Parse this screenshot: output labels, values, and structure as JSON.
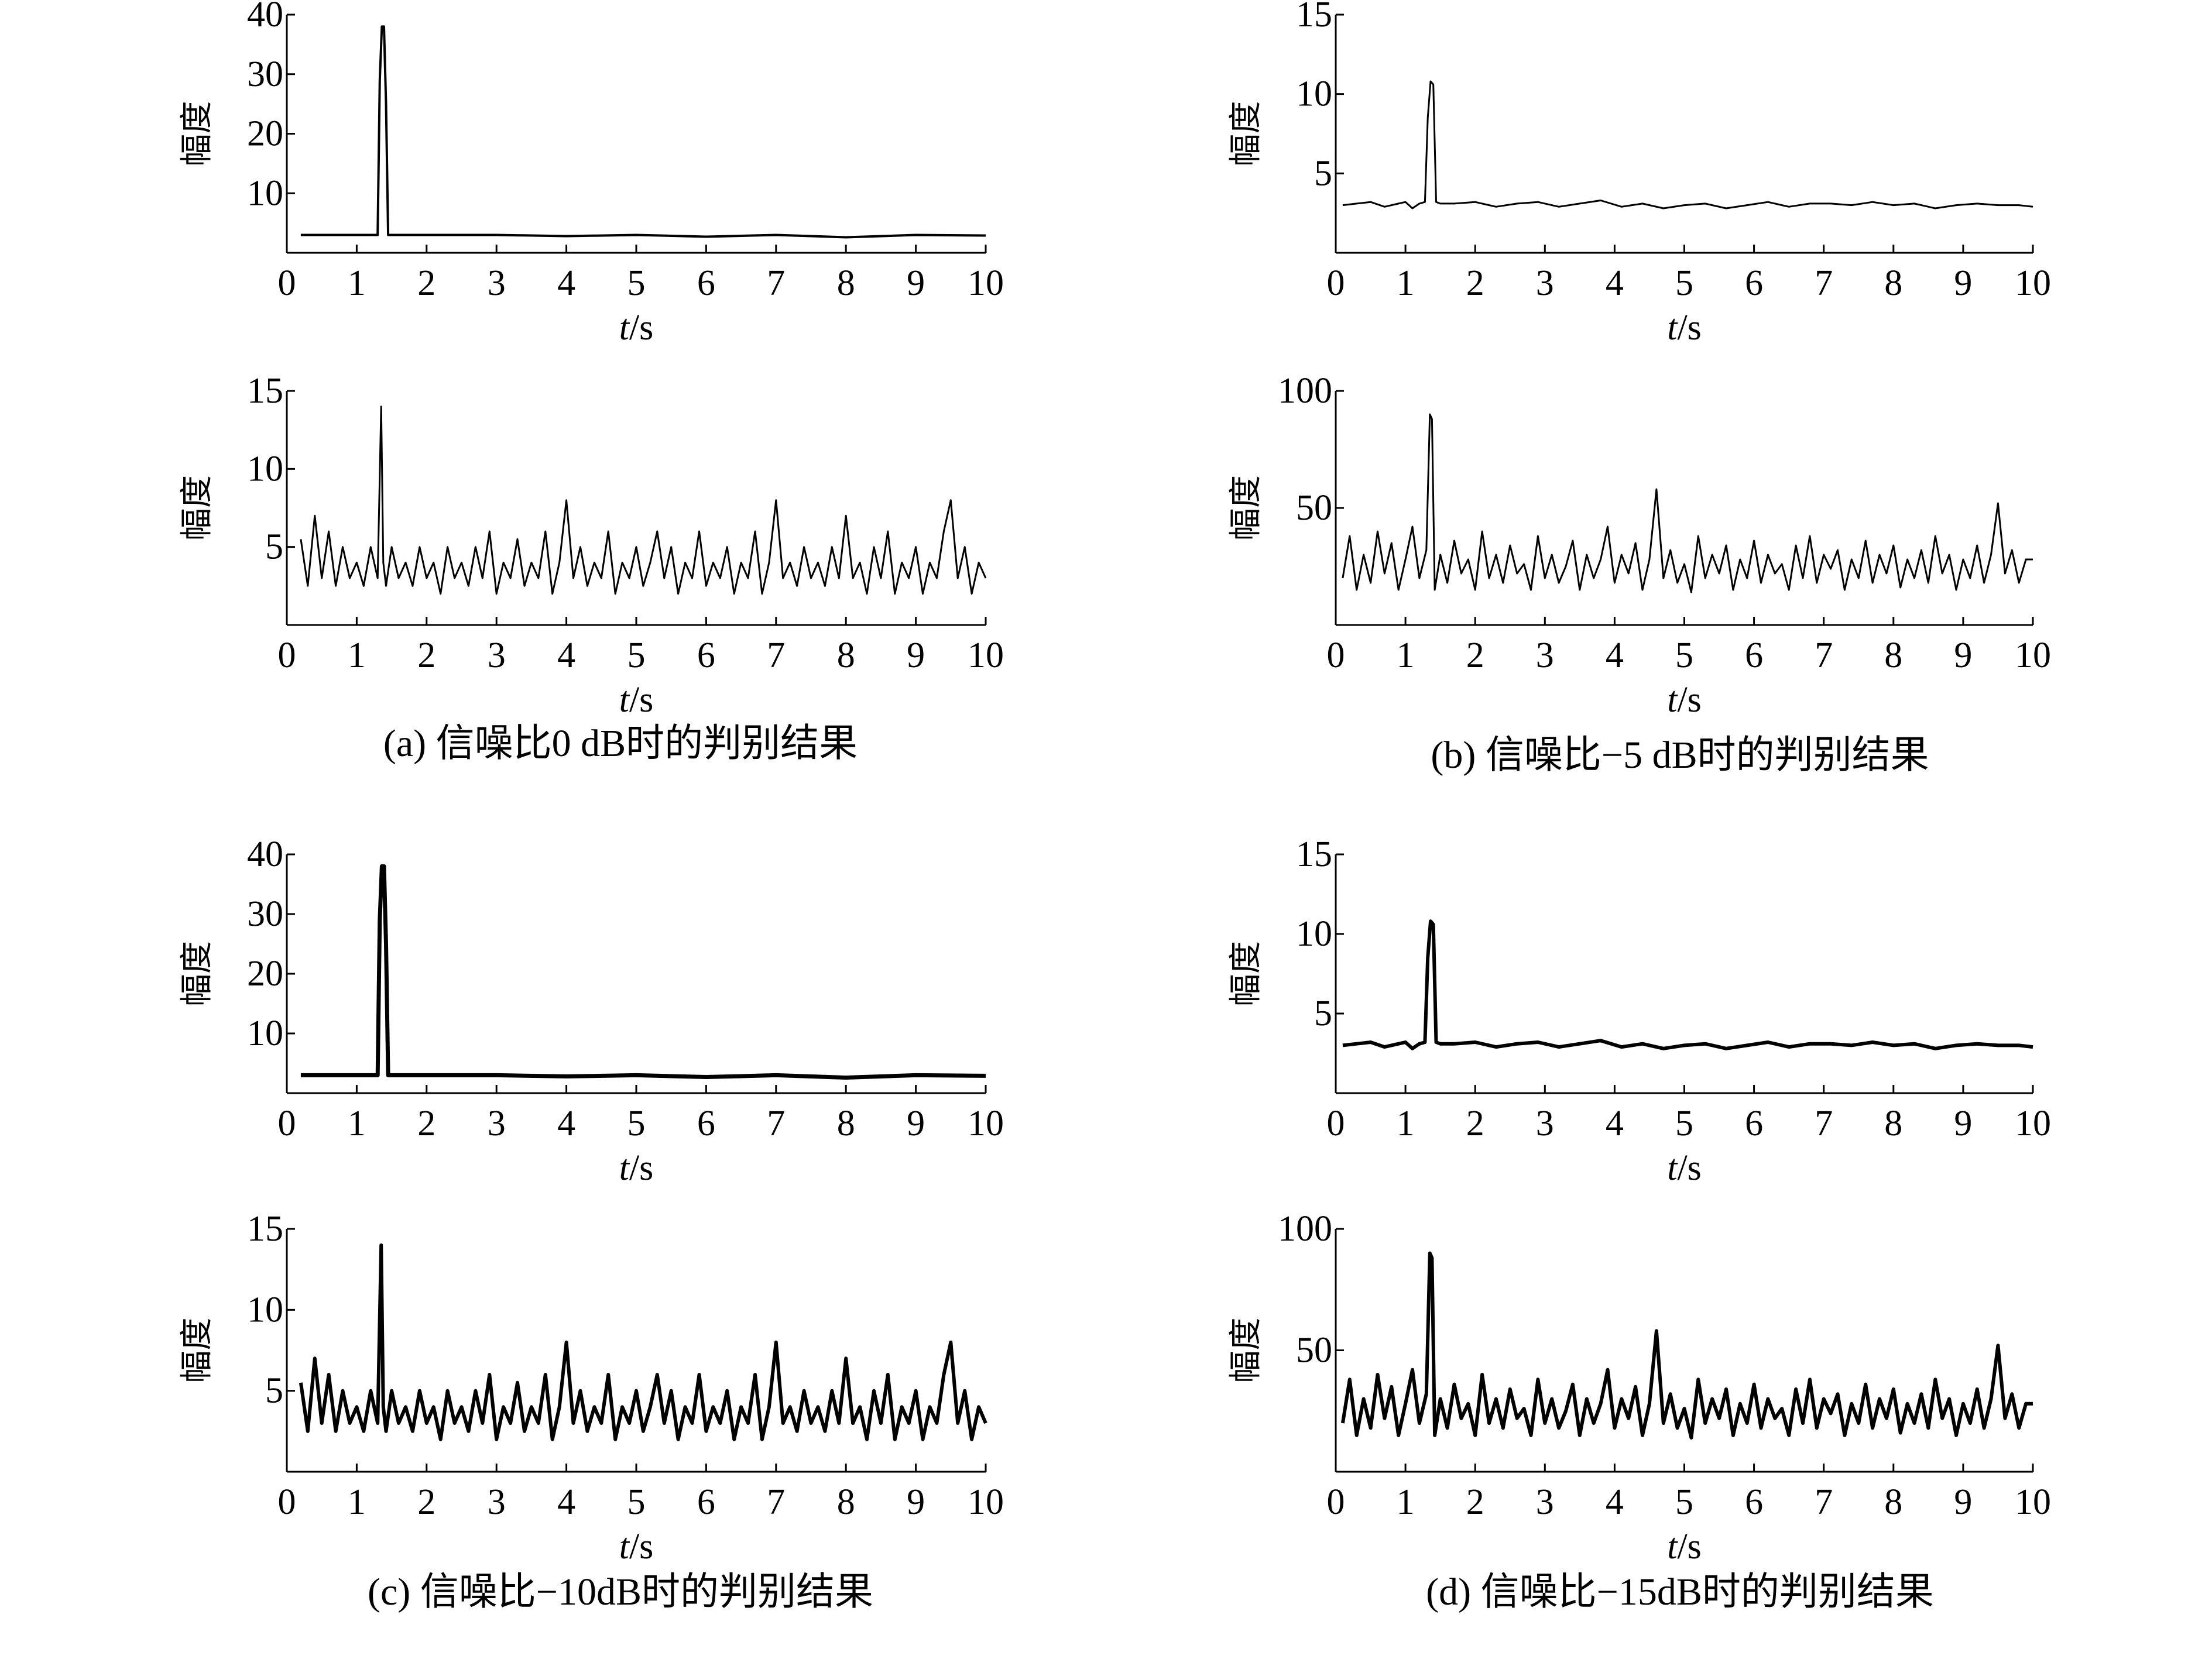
{
  "figure": {
    "captions": [
      "(a) 信噪比0 dB时的判别结果",
      "(b) 信噪比−5 dB时的判别结果",
      "(c) 信噪比−10dB时的判别结果",
      "(d) 信噪比−15dB时的判别结果"
    ]
  },
  "chart_data": [
    {
      "id": "a-top",
      "type": "line",
      "xlabel_italic": "t",
      "xlabel_unit": "/s",
      "ylabel": "幅度",
      "xlim": [
        0,
        10
      ],
      "ylim": [
        0,
        40
      ],
      "xticks": [
        0,
        1,
        2,
        3,
        4,
        5,
        6,
        7,
        8,
        9,
        10
      ],
      "yticks": [
        10,
        20,
        30,
        40
      ],
      "x": [
        0.2,
        1.25,
        1.3,
        1.33,
        1.36,
        1.39,
        1.42,
        1.45,
        1.5,
        2,
        3,
        4,
        5,
        6,
        7,
        8,
        9,
        10
      ],
      "values": [
        3,
        3,
        3,
        29,
        38,
        38,
        25,
        3,
        3,
        3,
        3,
        2.8,
        3,
        2.7,
        3,
        2.6,
        3,
        2.9
      ],
      "color": "#000000"
    },
    {
      "id": "a-bottom",
      "type": "line",
      "xlabel_italic": "t",
      "xlabel_unit": "/s",
      "ylabel": "幅度",
      "xlim": [
        0,
        10
      ],
      "ylim": [
        0,
        15
      ],
      "xticks": [
        0,
        1,
        2,
        3,
        4,
        5,
        6,
        7,
        8,
        9,
        10
      ],
      "yticks": [
        5,
        10,
        15
      ],
      "x": [
        0.2,
        0.3,
        0.4,
        0.5,
        0.6,
        0.7,
        0.8,
        0.9,
        1.0,
        1.1,
        1.2,
        1.3,
        1.35,
        1.38,
        1.42,
        1.5,
        1.6,
        1.7,
        1.8,
        1.9,
        2.0,
        2.1,
        2.2,
        2.3,
        2.4,
        2.5,
        2.6,
        2.7,
        2.8,
        2.9,
        3.0,
        3.1,
        3.2,
        3.3,
        3.4,
        3.5,
        3.6,
        3.7,
        3.8,
        3.9,
        4.0,
        4.1,
        4.2,
        4.3,
        4.4,
        4.5,
        4.6,
        4.7,
        4.8,
        4.9,
        5.0,
        5.1,
        5.2,
        5.3,
        5.4,
        5.5,
        5.6,
        5.7,
        5.8,
        5.9,
        6.0,
        6.1,
        6.2,
        6.3,
        6.4,
        6.5,
        6.6,
        6.7,
        6.8,
        6.9,
        7.0,
        7.1,
        7.2,
        7.3,
        7.4,
        7.5,
        7.6,
        7.7,
        7.8,
        7.9,
        8.0,
        8.1,
        8.2,
        8.3,
        8.4,
        8.5,
        8.6,
        8.7,
        8.8,
        8.9,
        9.0,
        9.1,
        9.2,
        9.3,
        9.4,
        9.5,
        9.6,
        9.7,
        9.8,
        9.9,
        10.0
      ],
      "values": [
        5.5,
        2.5,
        7,
        3,
        6,
        2.5,
        5,
        3,
        4,
        2.5,
        5,
        3,
        14,
        4,
        2.5,
        5,
        3,
        4,
        2.5,
        5,
        3,
        4,
        2,
        5,
        3,
        4,
        2.5,
        5,
        3,
        6,
        2,
        4,
        3,
        5.5,
        2.5,
        4,
        3,
        6,
        2,
        4,
        8,
        3,
        5,
        2.5,
        4,
        3,
        6,
        2,
        4,
        3,
        5,
        2.5,
        4,
        6,
        3,
        5,
        2,
        4,
        3,
        6,
        2.5,
        4,
        3,
        5,
        2,
        4,
        3,
        6,
        2,
        4,
        8,
        3,
        4,
        2.5,
        5,
        3,
        4,
        2.5,
        5,
        3,
        7,
        3,
        4,
        2,
        5,
        3,
        6,
        2,
        4,
        3,
        5,
        2,
        4,
        3,
        6,
        8,
        3,
        5,
        2,
        4,
        3
      ],
      "color": "#000000"
    },
    {
      "id": "b-top",
      "type": "line",
      "xlabel_italic": "t",
      "xlabel_unit": "/s",
      "ylabel": "幅度",
      "xlim": [
        0,
        10
      ],
      "ylim": [
        0,
        15
      ],
      "xticks": [
        0,
        1,
        2,
        3,
        4,
        5,
        6,
        7,
        8,
        9,
        10
      ],
      "yticks": [
        5,
        10,
        15
      ],
      "x": [
        0.1,
        0.3,
        0.5,
        0.7,
        0.9,
        1.0,
        1.1,
        1.2,
        1.28,
        1.32,
        1.36,
        1.4,
        1.44,
        1.5,
        1.7,
        2.0,
        2.3,
        2.6,
        2.9,
        3.2,
        3.5,
        3.8,
        4.1,
        4.4,
        4.7,
        5.0,
        5.3,
        5.6,
        5.9,
        6.2,
        6.5,
        6.8,
        7.1,
        7.4,
        7.7,
        8.0,
        8.3,
        8.6,
        8.9,
        9.2,
        9.5,
        9.8,
        10.0
      ],
      "values": [
        3,
        3.1,
        3.2,
        2.9,
        3.1,
        3.2,
        2.8,
        3.1,
        3.2,
        8.5,
        10.8,
        10.6,
        3.2,
        3.1,
        3.1,
        3.2,
        2.9,
        3.1,
        3.2,
        2.9,
        3.1,
        3.3,
        2.9,
        3.1,
        2.8,
        3.0,
        3.1,
        2.8,
        3.0,
        3.2,
        2.9,
        3.1,
        3.1,
        3.0,
        3.2,
        3.0,
        3.1,
        2.8,
        3.0,
        3.1,
        3.0,
        3.0,
        2.9
      ],
      "color": "#000000"
    },
    {
      "id": "b-bottom",
      "type": "line",
      "xlabel_italic": "t",
      "xlabel_unit": "/s",
      "ylabel": "幅度",
      "xlim": [
        0,
        10
      ],
      "ylim": [
        0,
        100
      ],
      "xticks": [
        0,
        1,
        2,
        3,
        4,
        5,
        6,
        7,
        8,
        9,
        10
      ],
      "yticks": [
        50,
        100
      ],
      "x": [
        0.1,
        0.2,
        0.3,
        0.4,
        0.5,
        0.6,
        0.7,
        0.8,
        0.9,
        1.0,
        1.1,
        1.2,
        1.3,
        1.35,
        1.38,
        1.42,
        1.5,
        1.6,
        1.7,
        1.8,
        1.9,
        2.0,
        2.1,
        2.2,
        2.3,
        2.4,
        2.5,
        2.6,
        2.7,
        2.8,
        2.9,
        3.0,
        3.1,
        3.2,
        3.3,
        3.4,
        3.5,
        3.6,
        3.7,
        3.8,
        3.9,
        4.0,
        4.1,
        4.2,
        4.3,
        4.4,
        4.5,
        4.6,
        4.7,
        4.8,
        4.9,
        5.0,
        5.1,
        5.2,
        5.3,
        5.4,
        5.5,
        5.6,
        5.7,
        5.8,
        5.9,
        6.0,
        6.1,
        6.2,
        6.3,
        6.4,
        6.5,
        6.6,
        6.7,
        6.8,
        6.9,
        7.0,
        7.1,
        7.2,
        7.3,
        7.4,
        7.5,
        7.6,
        7.7,
        7.8,
        7.9,
        8.0,
        8.1,
        8.2,
        8.3,
        8.4,
        8.5,
        8.6,
        8.7,
        8.8,
        8.9,
        9.0,
        9.1,
        9.2,
        9.3,
        9.4,
        9.5,
        9.6,
        9.7,
        9.8,
        9.9,
        10.0
      ],
      "values": [
        20,
        38,
        15,
        30,
        18,
        40,
        22,
        35,
        15,
        28,
        42,
        20,
        32,
        90,
        88,
        15,
        30,
        18,
        36,
        22,
        28,
        15,
        40,
        20,
        30,
        18,
        34,
        22,
        26,
        15,
        38,
        20,
        30,
        18,
        25,
        36,
        15,
        30,
        20,
        28,
        42,
        18,
        30,
        22,
        35,
        15,
        28,
        58,
        20,
        32,
        18,
        26,
        14,
        38,
        20,
        30,
        22,
        34,
        15,
        28,
        20,
        36,
        18,
        30,
        22,
        26,
        15,
        34,
        20,
        38,
        18,
        30,
        24,
        32,
        15,
        28,
        20,
        36,
        18,
        30,
        22,
        34,
        16,
        28,
        20,
        32,
        18,
        38,
        22,
        30,
        15,
        28,
        20,
        34,
        18,
        30,
        52,
        22,
        32,
        18,
        28,
        28
      ],
      "color": "#000000"
    },
    {
      "id": "c-top",
      "type": "line",
      "xlabel_italic": "t",
      "xlabel_unit": "/s",
      "ylabel": "幅度",
      "xlim": [
        0,
        10
      ],
      "ylim": [
        0,
        40
      ],
      "xticks": [
        0,
        1,
        2,
        3,
        4,
        5,
        6,
        7,
        8,
        9,
        10
      ],
      "yticks": [
        10,
        20,
        30,
        40
      ],
      "x": [
        0.2,
        1.25,
        1.3,
        1.33,
        1.36,
        1.39,
        1.42,
        1.45,
        1.5,
        2,
        3,
        4,
        5,
        6,
        7,
        8,
        9,
        10
      ],
      "values": [
        3,
        3,
        3,
        29,
        38,
        38,
        25,
        3,
        3,
        3,
        3,
        2.8,
        3,
        2.7,
        3,
        2.6,
        3,
        2.9
      ],
      "color": "#000000"
    },
    {
      "id": "c-bottom",
      "type": "line",
      "xlabel_italic": "t",
      "xlabel_unit": "/s",
      "ylabel": "幅度",
      "xlim": [
        0,
        10
      ],
      "ylim": [
        0,
        15
      ],
      "xticks": [
        0,
        1,
        2,
        3,
        4,
        5,
        6,
        7,
        8,
        9,
        10
      ],
      "yticks": [
        5,
        10,
        15
      ],
      "x": [
        0.2,
        0.3,
        0.4,
        0.5,
        0.6,
        0.7,
        0.8,
        0.9,
        1.0,
        1.1,
        1.2,
        1.3,
        1.35,
        1.38,
        1.42,
        1.5,
        1.6,
        1.7,
        1.8,
        1.9,
        2.0,
        2.1,
        2.2,
        2.3,
        2.4,
        2.5,
        2.6,
        2.7,
        2.8,
        2.9,
        3.0,
        3.1,
        3.2,
        3.3,
        3.4,
        3.5,
        3.6,
        3.7,
        3.8,
        3.9,
        4.0,
        4.1,
        4.2,
        4.3,
        4.4,
        4.5,
        4.6,
        4.7,
        4.8,
        4.9,
        5.0,
        5.1,
        5.2,
        5.3,
        5.4,
        5.5,
        5.6,
        5.7,
        5.8,
        5.9,
        6.0,
        6.1,
        6.2,
        6.3,
        6.4,
        6.5,
        6.6,
        6.7,
        6.8,
        6.9,
        7.0,
        7.1,
        7.2,
        7.3,
        7.4,
        7.5,
        7.6,
        7.7,
        7.8,
        7.9,
        8.0,
        8.1,
        8.2,
        8.3,
        8.4,
        8.5,
        8.6,
        8.7,
        8.8,
        8.9,
        9.0,
        9.1,
        9.2,
        9.3,
        9.4,
        9.5,
        9.6,
        9.7,
        9.8,
        9.9,
        10.0
      ],
      "values": [
        5.5,
        2.5,
        7,
        3,
        6,
        2.5,
        5,
        3,
        4,
        2.5,
        5,
        3,
        14,
        4,
        2.5,
        5,
        3,
        4,
        2.5,
        5,
        3,
        4,
        2,
        5,
        3,
        4,
        2.5,
        5,
        3,
        6,
        2,
        4,
        3,
        5.5,
        2.5,
        4,
        3,
        6,
        2,
        4,
        8,
        3,
        5,
        2.5,
        4,
        3,
        6,
        2,
        4,
        3,
        5,
        2.5,
        4,
        6,
        3,
        5,
        2,
        4,
        3,
        6,
        2.5,
        4,
        3,
        5,
        2,
        4,
        3,
        6,
        2,
        4,
        8,
        3,
        4,
        2.5,
        5,
        3,
        4,
        2.5,
        5,
        3,
        7,
        3,
        4,
        2,
        5,
        3,
        6,
        2,
        4,
        3,
        5,
        2,
        4,
        3,
        6,
        8,
        3,
        5,
        2,
        4,
        3
      ],
      "color": "#000000"
    },
    {
      "id": "d-top",
      "type": "line",
      "xlabel_italic": "t",
      "xlabel_unit": "/s",
      "ylabel": "幅度",
      "xlim": [
        0,
        10
      ],
      "ylim": [
        0,
        15
      ],
      "xticks": [
        0,
        1,
        2,
        3,
        4,
        5,
        6,
        7,
        8,
        9,
        10
      ],
      "yticks": [
        5,
        10,
        15
      ],
      "x": [
        0.1,
        0.3,
        0.5,
        0.7,
        0.9,
        1.0,
        1.1,
        1.2,
        1.28,
        1.32,
        1.36,
        1.4,
        1.44,
        1.5,
        1.7,
        2.0,
        2.3,
        2.6,
        2.9,
        3.2,
        3.5,
        3.8,
        4.1,
        4.4,
        4.7,
        5.0,
        5.3,
        5.6,
        5.9,
        6.2,
        6.5,
        6.8,
        7.1,
        7.4,
        7.7,
        8.0,
        8.3,
        8.6,
        8.9,
        9.2,
        9.5,
        9.8,
        10.0
      ],
      "values": [
        3,
        3.1,
        3.2,
        2.9,
        3.1,
        3.2,
        2.8,
        3.1,
        3.2,
        8.5,
        10.8,
        10.6,
        3.2,
        3.1,
        3.1,
        3.2,
        2.9,
        3.1,
        3.2,
        2.9,
        3.1,
        3.3,
        2.9,
        3.1,
        2.8,
        3.0,
        3.1,
        2.8,
        3.0,
        3.2,
        2.9,
        3.1,
        3.1,
        3.0,
        3.2,
        3.0,
        3.1,
        2.8,
        3.0,
        3.1,
        3.0,
        3.0,
        2.9
      ],
      "color": "#000000"
    },
    {
      "id": "d-bottom",
      "type": "line",
      "xlabel_italic": "t",
      "xlabel_unit": "/s",
      "ylabel": "幅度",
      "xlim": [
        0,
        10
      ],
      "ylim": [
        0,
        100
      ],
      "xticks": [
        0,
        1,
        2,
        3,
        4,
        5,
        6,
        7,
        8,
        9,
        10
      ],
      "yticks": [
        50,
        100
      ],
      "x": [
        0.1,
        0.2,
        0.3,
        0.4,
        0.5,
        0.6,
        0.7,
        0.8,
        0.9,
        1.0,
        1.1,
        1.2,
        1.3,
        1.35,
        1.38,
        1.42,
        1.5,
        1.6,
        1.7,
        1.8,
        1.9,
        2.0,
        2.1,
        2.2,
        2.3,
        2.4,
        2.5,
        2.6,
        2.7,
        2.8,
        2.9,
        3.0,
        3.1,
        3.2,
        3.3,
        3.4,
        3.5,
        3.6,
        3.7,
        3.8,
        3.9,
        4.0,
        4.1,
        4.2,
        4.3,
        4.4,
        4.5,
        4.6,
        4.7,
        4.8,
        4.9,
        5.0,
        5.1,
        5.2,
        5.3,
        5.4,
        5.5,
        5.6,
        5.7,
        5.8,
        5.9,
        6.0,
        6.1,
        6.2,
        6.3,
        6.4,
        6.5,
        6.6,
        6.7,
        6.8,
        6.9,
        7.0,
        7.1,
        7.2,
        7.3,
        7.4,
        7.5,
        7.6,
        7.7,
        7.8,
        7.9,
        8.0,
        8.1,
        8.2,
        8.3,
        8.4,
        8.5,
        8.6,
        8.7,
        8.8,
        8.9,
        9.0,
        9.1,
        9.2,
        9.3,
        9.4,
        9.5,
        9.6,
        9.7,
        9.8,
        9.9,
        10.0
      ],
      "values": [
        20,
        38,
        15,
        30,
        18,
        40,
        22,
        35,
        15,
        28,
        42,
        20,
        32,
        90,
        88,
        15,
        30,
        18,
        36,
        22,
        28,
        15,
        40,
        20,
        30,
        18,
        34,
        22,
        26,
        15,
        38,
        20,
        30,
        18,
        25,
        36,
        15,
        30,
        20,
        28,
        42,
        18,
        30,
        22,
        35,
        15,
        28,
        58,
        20,
        32,
        18,
        26,
        14,
        38,
        20,
        30,
        22,
        34,
        15,
        28,
        20,
        36,
        18,
        30,
        22,
        26,
        15,
        34,
        20,
        38,
        18,
        30,
        24,
        32,
        15,
        28,
        20,
        36,
        18,
        30,
        22,
        34,
        16,
        28,
        20,
        32,
        18,
        38,
        22,
        30,
        15,
        28,
        20,
        34,
        18,
        30,
        52,
        22,
        32,
        18,
        28,
        28
      ],
      "color": "#000000"
    }
  ]
}
